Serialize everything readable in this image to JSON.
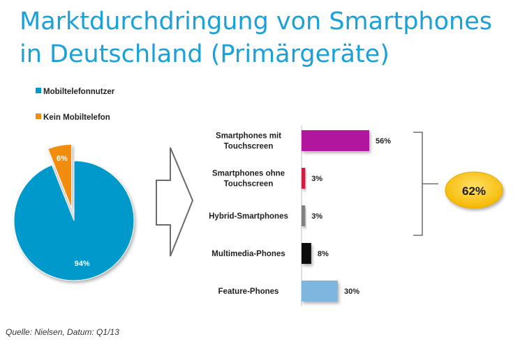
{
  "title": {
    "line1": "Marktdurchdringung von Smartphones",
    "line2": "in Deutschland (Primärgeräte)"
  },
  "source": "Quelle: Nielsen, Datum: Q1/13",
  "colors": {
    "title": "#1ba1d9",
    "pie_users": "#0099cc",
    "pie_none": "#f28c0f",
    "bar_smart_touch": "#b0169e",
    "bar_smart_no_touch": "#d01c40",
    "bar_hybrid": "#808080",
    "bar_multimedia": "#0a0a0a",
    "bar_feature": "#7fb6e0",
    "badge": "#fac819"
  },
  "chart_data": [
    {
      "type": "pie",
      "legend_position": "top-left",
      "labels": [
        "Mobiltelefonnutzer",
        "Kein Mobiltelefon"
      ],
      "values": [
        94,
        6
      ],
      "value_labels": [
        "94%",
        "6%"
      ],
      "exploded": [
        false,
        true
      ]
    },
    {
      "type": "bar",
      "orientation": "horizontal",
      "categories": [
        "Smartphones mit Touchscreen",
        "Smartphones ohne Touchscreen",
        "Hybrid-Smartphones",
        "Multimedia-Phones",
        "Feature-Phones"
      ],
      "category_lines": [
        [
          "Smartphones mit",
          "Touchscreen"
        ],
        [
          "Smartphones ohne",
          "Touchscreen"
        ],
        [
          "Hybrid-Smartphones"
        ],
        [
          "Multimedia-Phones"
        ],
        [
          "Feature-Phones"
        ]
      ],
      "values": [
        56,
        3,
        3,
        8,
        30
      ],
      "value_labels": [
        "56%",
        "3%",
        "3%",
        "8%",
        "30%"
      ],
      "xlim": [
        0,
        56
      ],
      "grid": false,
      "bracket_total": "62%"
    }
  ]
}
